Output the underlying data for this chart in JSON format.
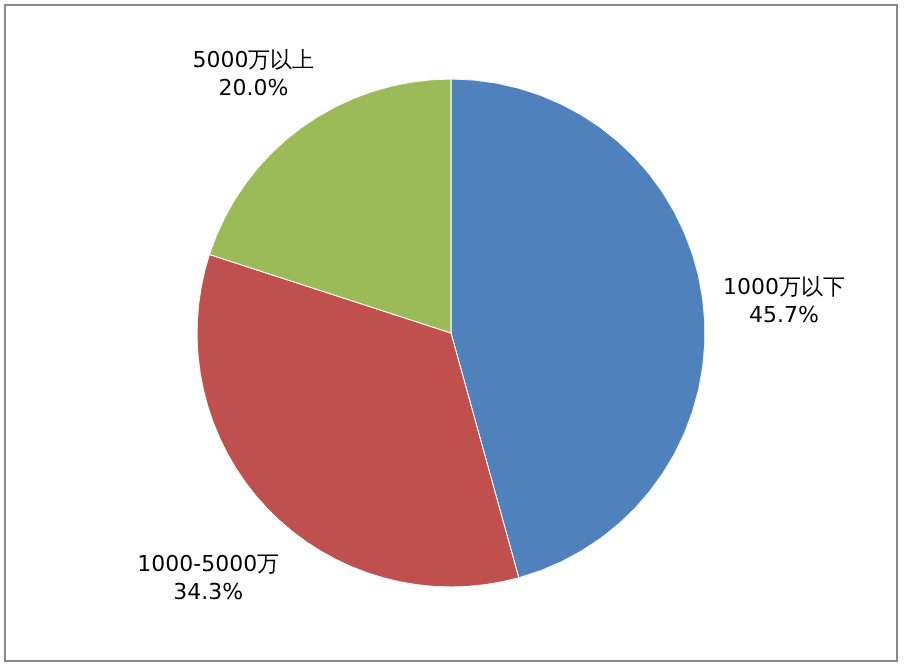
{
  "chart_data": {
    "type": "pie",
    "categories": [
      "1000万以下",
      "1000-5000万",
      "5000万以上"
    ],
    "values": [
      45.7,
      34.3,
      20.0
    ],
    "value_labels": [
      "45.7%",
      "34.3%",
      "20.0%"
    ],
    "colors": [
      "#4f81bd",
      "#c0504d",
      "#9bbb59"
    ]
  }
}
